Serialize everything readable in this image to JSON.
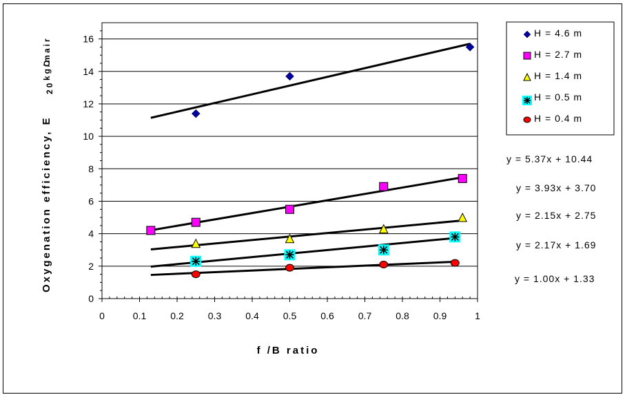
{
  "chart_data": {
    "type": "scatter",
    "xlabel": "f /B ratio",
    "ylabel": "Oxygenation efficiency, E, 20  kgO  /m air",
    "ylabel_sub_main": "Oxygenation efficiency, E",
    "ylabel_sub_a": "20",
    "ylabel_sub_b": "kgO",
    "ylabel_sub_c": "/m",
    "ylabel_sub_d": "air",
    "xlim": [
      0,
      1
    ],
    "ylim": [
      0,
      17
    ],
    "xticks": [
      "0",
      "0.1",
      "0.2",
      "0.3",
      "0.4",
      "0.5",
      "0.6",
      "0.7",
      "0.8",
      "0.9",
      "1"
    ],
    "yticks": [
      "0",
      "2",
      "4",
      "6",
      "8",
      "10",
      "12",
      "14",
      "16"
    ],
    "grid": "horizontal",
    "legend_position": "right",
    "series": [
      {
        "name": "H = 4.6  m",
        "marker": "diamond",
        "color": "#0000a0",
        "x": [
          0.25,
          0.5,
          0.98
        ],
        "y": [
          11.4,
          13.7,
          15.5
        ],
        "trend": {
          "equation": "y = 5.37x + 10.44",
          "slope": 5.37,
          "intercept": 10.44,
          "x_range": [
            0.13,
            0.98
          ]
        }
      },
      {
        "name": "H = 2.7  m",
        "marker": "square",
        "color": "#ff00ff",
        "x": [
          0.13,
          0.25,
          0.5,
          0.75,
          0.96
        ],
        "y": [
          4.2,
          4.7,
          5.5,
          6.9,
          7.4
        ],
        "trend": {
          "equation": "y = 3.93x + 3.70",
          "slope": 3.93,
          "intercept": 3.7,
          "x_range": [
            0.13,
            0.96
          ]
        }
      },
      {
        "name": "H = 1.4  m",
        "marker": "triangle",
        "color": "#ffff00",
        "x": [
          0.25,
          0.5,
          0.75,
          0.96
        ],
        "y": [
          3.4,
          3.7,
          4.3,
          5.0
        ],
        "trend": {
          "equation": "y = 2.15x + 2.75",
          "slope": 2.15,
          "intercept": 2.75,
          "x_range": [
            0.13,
            0.96
          ]
        }
      },
      {
        "name": "H = 0.5  m",
        "marker": "star",
        "color": "#00ffff",
        "x": [
          0.25,
          0.5,
          0.75,
          0.94
        ],
        "y": [
          2.3,
          2.7,
          3.0,
          3.8
        ],
        "trend": {
          "equation": "y = 2.17x + 1.69",
          "slope": 2.17,
          "intercept": 1.69,
          "x_range": [
            0.13,
            0.94
          ]
        }
      },
      {
        "name": "H = 0.4  m",
        "marker": "circle",
        "color": "#ff0000",
        "x": [
          0.25,
          0.5,
          0.75,
          0.94
        ],
        "y": [
          1.5,
          1.9,
          2.1,
          2.2
        ],
        "trend": {
          "equation": "y = 1.00x + 1.33",
          "slope": 1.0,
          "intercept": 1.33,
          "x_range": [
            0.13,
            0.94
          ]
        }
      }
    ]
  }
}
